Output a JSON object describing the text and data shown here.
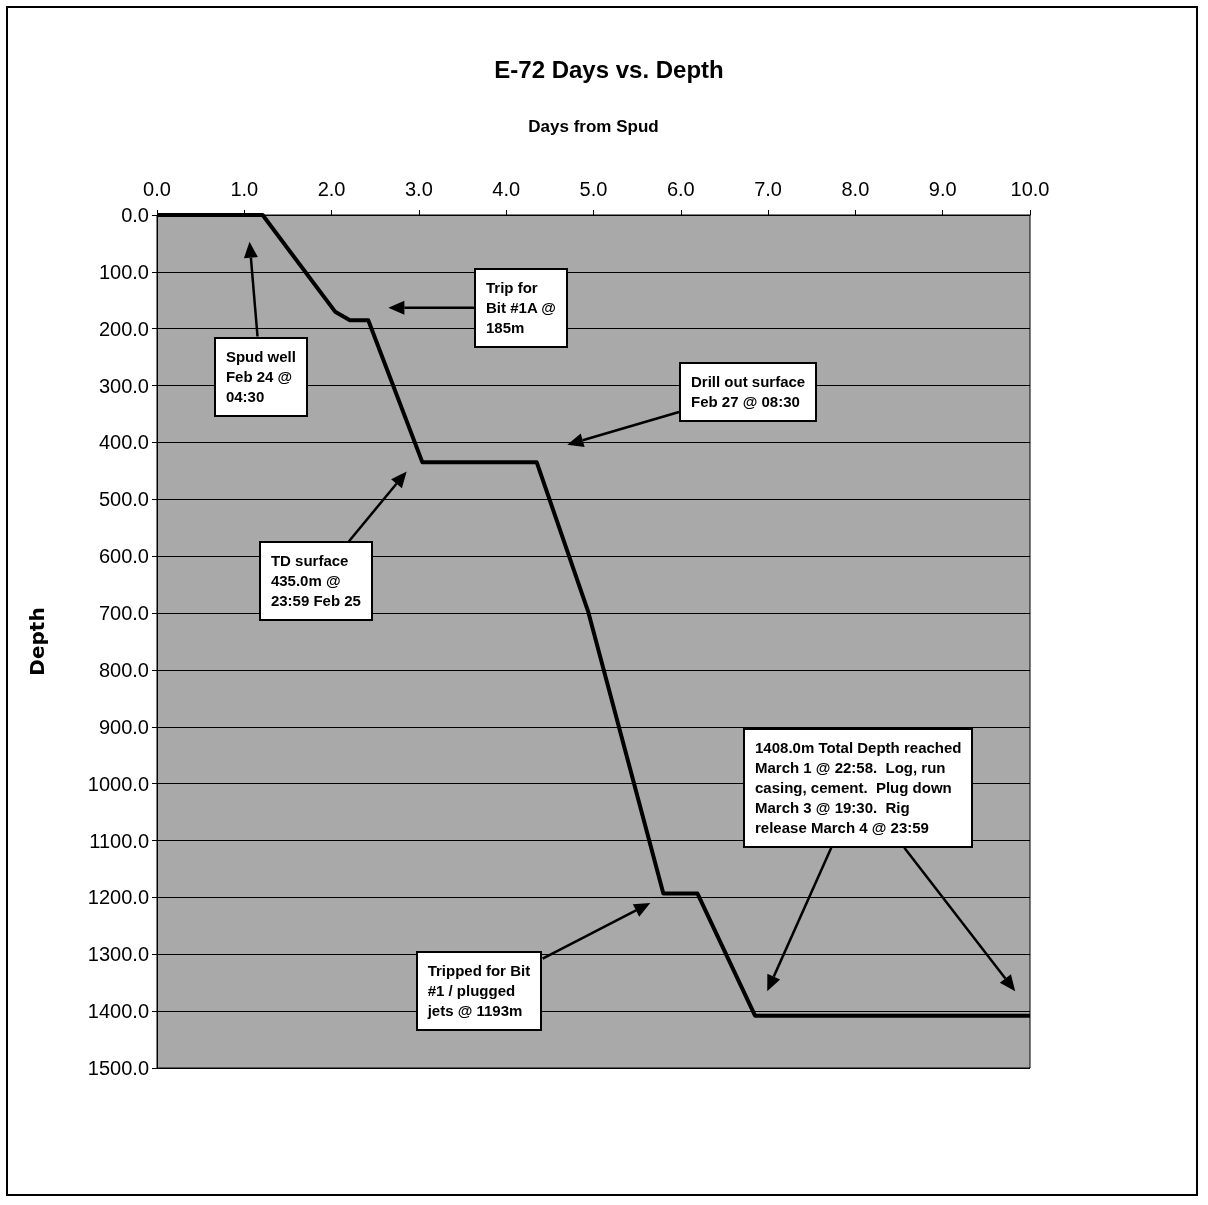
{
  "chart_data": {
    "type": "line",
    "title": "E-72 Days vs. Depth",
    "xlabel": "Days from Spud",
    "ylabel": "Depth",
    "x": [
      0,
      1.21,
      2.04,
      2.21,
      2.42,
      3.04,
      4.35,
      4.94,
      5.8,
      6.19,
      6.85,
      10
    ],
    "series": [
      {
        "color": "#000000",
        "values": [
          0,
          0,
          170,
          185,
          185,
          435,
          435,
          698,
          1193,
          1193,
          1408,
          1408
        ]
      }
    ],
    "xlim": [
      0,
      10
    ],
    "xticks": [
      {
        "value": 0,
        "label": "0.0"
      },
      {
        "value": 1,
        "label": "1.0"
      },
      {
        "value": 2,
        "label": "2.0"
      },
      {
        "value": 3,
        "label": "3.0"
      },
      {
        "value": 4,
        "label": "4.0"
      },
      {
        "value": 5,
        "label": "5.0"
      },
      {
        "value": 6,
        "label": "6.0"
      },
      {
        "value": 7,
        "label": "7.0"
      },
      {
        "value": 8,
        "label": "8.0"
      },
      {
        "value": 9,
        "label": "9.0"
      },
      {
        "value": 10,
        "label": "10.0"
      }
    ],
    "ylim": [
      1500,
      0
    ],
    "yticks": [
      {
        "value": 0,
        "label": "0.0"
      },
      {
        "value": 100,
        "label": "100.0"
      },
      {
        "value": 200,
        "label": "200.0"
      },
      {
        "value": 300,
        "label": "300.0"
      },
      {
        "value": 400,
        "label": "400.0"
      },
      {
        "value": 500,
        "label": "500.0"
      },
      {
        "value": 600,
        "label": "600.0"
      },
      {
        "value": 700,
        "label": "700.0"
      },
      {
        "value": 800,
        "label": "800.0"
      },
      {
        "value": 900,
        "label": "900.0"
      },
      {
        "value": 1000,
        "label": "1000.0"
      },
      {
        "value": 1100,
        "label": "1100.0"
      },
      {
        "value": 1200,
        "label": "1200.0"
      },
      {
        "value": 1300,
        "label": "1300.0"
      },
      {
        "value": 1400,
        "label": "1400.0"
      },
      {
        "value": 1500,
        "label": "1500.0"
      }
    ],
    "grid": "y",
    "marker": "none",
    "line_style": "solid",
    "annotations": [
      "Spud well\nFeb 24 @\n04:30",
      "Trip for\nBit #1A @\n185m",
      "Drill out surface\nFeb 27 @ 08:30",
      "TD surface\n435.0m @\n23:59 Feb 25",
      "Tripped for Bit\n#1 / plugged\njets @ 1193m",
      "1408.0m Total Depth reached\nMarch 1 @ 22:58.  Log, run\ncasing, cement.  Plug down\nMarch 3 @ 19:30.  Rig\nrelease March 4 @ 23:59"
    ]
  }
}
